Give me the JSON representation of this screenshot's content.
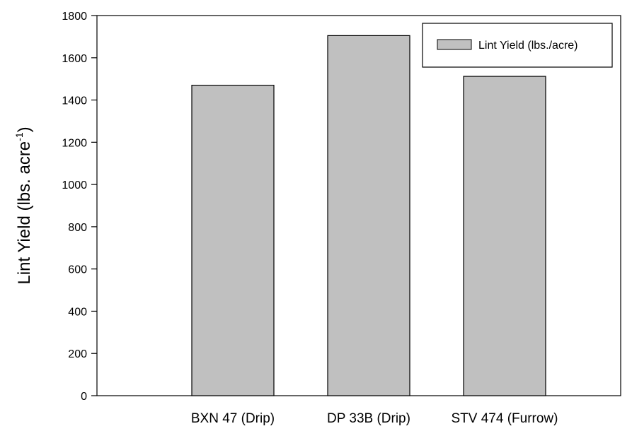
{
  "chart_data": {
    "type": "bar",
    "title": "",
    "xlabel": "",
    "ylabel": {
      "text": "Lint Yield (lbs. acre",
      "superscript": "-1",
      "suffix": ")"
    },
    "categories": [
      "BXN 47 (Drip)",
      "DP 33B (Drip)",
      "STV 474 (Furrow)"
    ],
    "series": [
      {
        "name": "Lint Yield (lbs./acre)",
        "values": [
          1470,
          1705,
          1512
        ],
        "color": "#c0c0c0"
      }
    ],
    "ylim": [
      0,
      1800
    ],
    "yticks": [
      "0",
      "200",
      "400",
      "600",
      "800",
      "1000",
      "1200",
      "1400",
      "1600",
      "1800"
    ],
    "ytick_values": [
      0,
      200,
      400,
      600,
      800,
      1000,
      1200,
      1400,
      1600,
      1800
    ],
    "grid": false,
    "legend_position": "top-right",
    "colors": {
      "bar_fill": "#c0c0c0",
      "bar_stroke": "#000000",
      "axis": "#000000"
    }
  }
}
